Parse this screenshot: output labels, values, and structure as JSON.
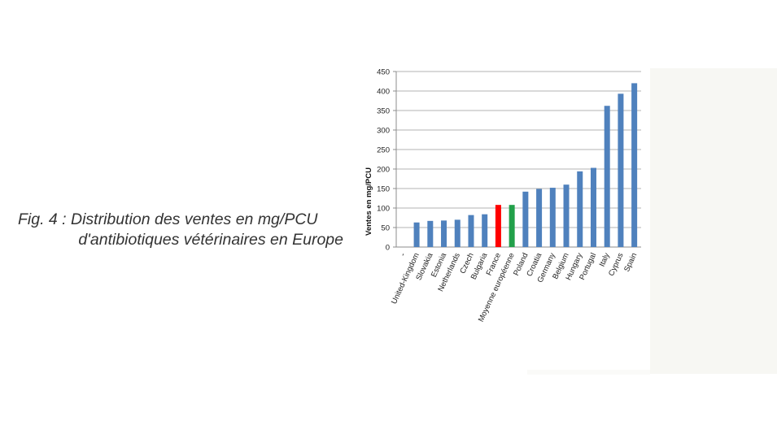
{
  "caption": {
    "line1": "Fig. 4 : Distribution des ventes en mg/PCU",
    "line2": "d'antibiotiques vétérinaires en Europe"
  },
  "chart_data": {
    "type": "bar",
    "ylabel": "Ventes en mg/PCU",
    "xlabel": "",
    "ylim": [
      0,
      450
    ],
    "yticks": [
      0,
      50,
      100,
      150,
      200,
      250,
      300,
      350,
      400,
      450
    ],
    "grid": true,
    "categories": [
      "-",
      "United-Kingdom",
      "Slovakia",
      "Estonia",
      "Netherlands",
      "Czech",
      "Bulgaria",
      "France",
      "Moyenne européenne",
      "Poland",
      "Croatia",
      "Germany",
      "Belgium",
      "Hungary",
      "Portugal",
      "Italy",
      "Cyprus",
      "Spain"
    ],
    "values": [
      0,
      63,
      67,
      68,
      70,
      82,
      84,
      108,
      108,
      142,
      149,
      152,
      160,
      194,
      203,
      362,
      393,
      420
    ],
    "colors": {
      "default": "#4f81bd",
      "France": "#ff0000",
      "Moyenne européenne": "#22a04a"
    }
  }
}
